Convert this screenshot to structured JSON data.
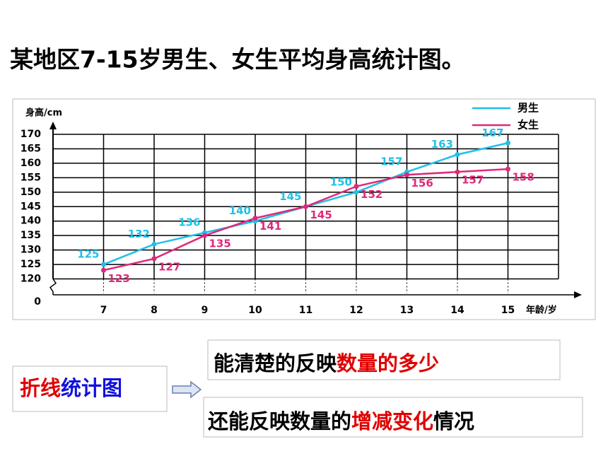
{
  "title": "某地区7-15岁男生、女生平均身高统计图。",
  "chart_data": {
    "type": "line",
    "y_label": "身高/cm",
    "x_label": "年龄/岁",
    "categories": [
      7,
      8,
      9,
      10,
      11,
      12,
      13,
      14,
      15
    ],
    "xlim": [
      6,
      16
    ],
    "xticks": [
      7,
      8,
      9,
      10,
      11,
      12,
      13,
      14,
      15
    ],
    "ylim": [
      115,
      170
    ],
    "yticks": [
      120,
      125,
      130,
      135,
      140,
      145,
      150,
      155,
      160,
      165,
      170
    ],
    "y_origin": 0,
    "grid": true,
    "legend": "top-right",
    "series": [
      {
        "name": "男生",
        "color": "#1fc0e8",
        "values": [
          125,
          132,
          136,
          140,
          145,
          150,
          157,
          163,
          167
        ]
      },
      {
        "name": "女生",
        "color": "#e0287a",
        "values": [
          123,
          127,
          135,
          141,
          145,
          152,
          156,
          157,
          158
        ]
      }
    ]
  },
  "summary": {
    "left": [
      {
        "text": "折线",
        "color": "#e00000"
      },
      {
        "text": "统计图",
        "color": "#1010e0"
      }
    ],
    "point1": [
      {
        "text": "能清楚的反映",
        "color": "#000000"
      },
      {
        "text": "数量的多少",
        "color": "#e00000"
      }
    ],
    "point2": [
      {
        "text": "还能反映数量的",
        "color": "#000000"
      },
      {
        "text": "增减变化",
        "color": "#e00000"
      },
      {
        "text": "情况",
        "color": "#000000"
      }
    ]
  }
}
